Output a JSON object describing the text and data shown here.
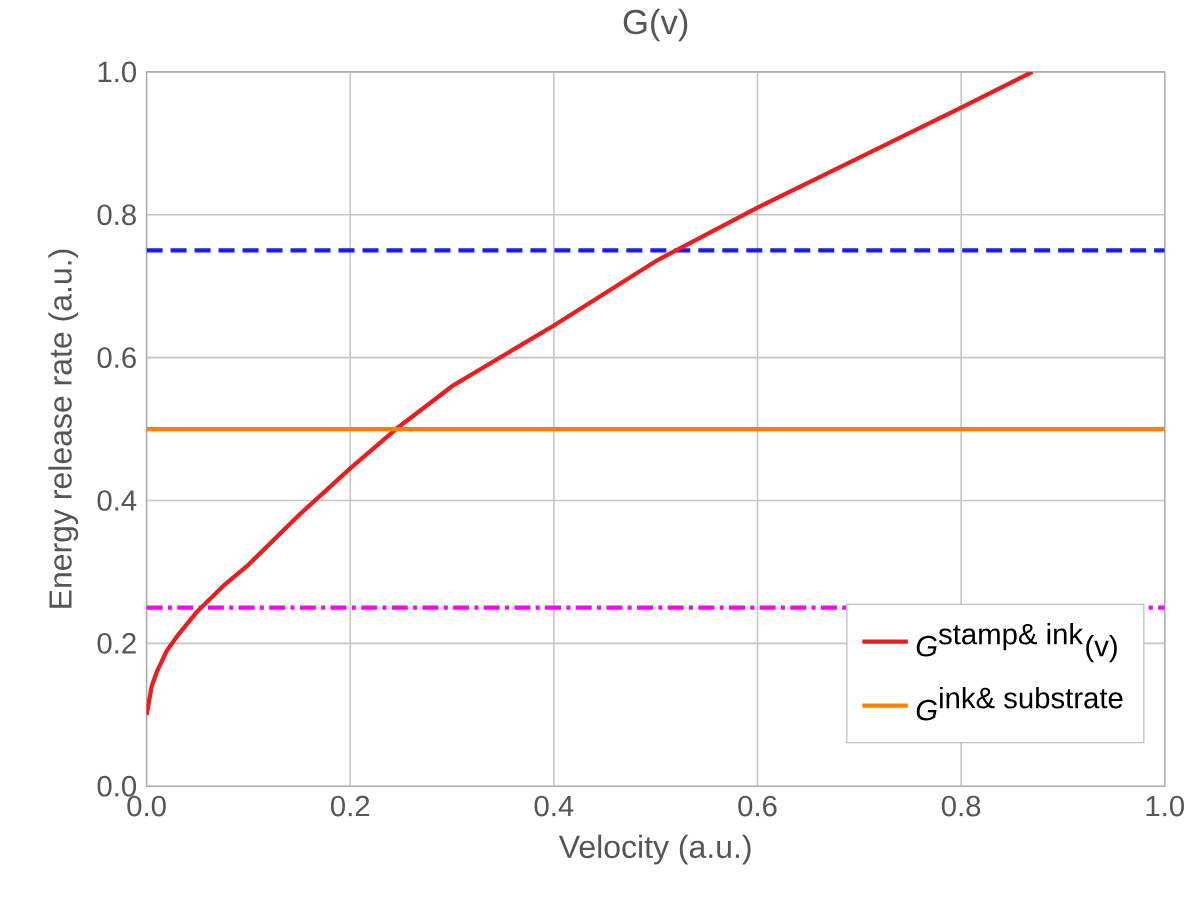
{
  "chart_data": {
    "type": "line",
    "title": "G(v)",
    "xlabel": "Velocity (a.u.)",
    "ylabel": "Energy release rate (a.u.)",
    "series": [
      {
        "name": "\\textit{G}^{\\textrm{stamp\\& ink}}\\textrm{(v)}",
        "color": "#ee1c1c",
        "x": [
          0,
          0.005,
          0.01,
          0.02,
          0.03,
          0.05,
          0.075,
          0.1,
          0.15,
          0.2,
          0.245,
          0.3,
          0.4,
          0.5,
          0.52,
          0.6,
          0.7,
          0.8,
          0.87
        ],
        "values": [
          0.1,
          0.14,
          0.16,
          0.19,
          0.21,
          0.245,
          0.28,
          0.31,
          0.38,
          0.445,
          0.5,
          0.56,
          0.645,
          0.735,
          0.75,
          0.81,
          0.88,
          0.95,
          1.0
        ]
      },
      {
        "name": "\\textit{G}^{\\textrm{ink\\& substrate}}",
        "color": "#ff8000",
        "x": [
          0,
          1
        ],
        "values": [
          0.5,
          0.5
        ]
      }
    ],
    "ref_lines": [
      {
        "axis": "y",
        "value": 0.75,
        "color": "#1a1aff",
        "line_style": "dashed"
      },
      {
        "axis": "y",
        "value": 0.25,
        "color": "#ff00ff",
        "line_style": "dashdot"
      }
    ],
    "xlim": [
      0,
      1
    ],
    "ylim": [
      0,
      1
    ],
    "xticks": [
      {
        "value": 0,
        "label": "0.0"
      },
      {
        "value": 0.2,
        "label": "0.2"
      },
      {
        "value": 0.4,
        "label": "0.4"
      },
      {
        "value": 0.6,
        "label": "0.6"
      },
      {
        "value": 0.8,
        "label": "0.8"
      },
      {
        "value": 1,
        "label": "1.0"
      }
    ],
    "yticks": [
      {
        "value": 0,
        "label": "0.0"
      },
      {
        "value": 0.2,
        "label": "0.2"
      },
      {
        "value": 0.4,
        "label": "0.4"
      },
      {
        "value": 0.6,
        "label": "0.6"
      },
      {
        "value": 0.8,
        "label": "0.8"
      },
      {
        "value": 1,
        "label": "1.0"
      }
    ],
    "grid": true,
    "legend": "bottom right",
    "line_style": "solid",
    "marker": "none"
  }
}
